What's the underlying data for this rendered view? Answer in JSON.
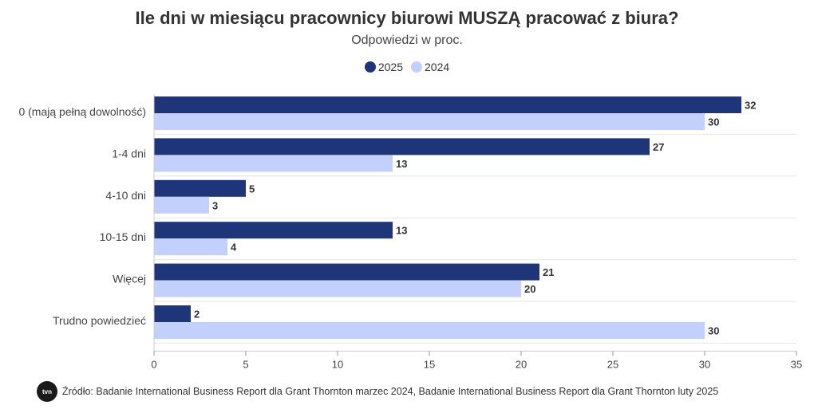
{
  "chart_data": {
    "type": "bar",
    "orientation": "horizontal",
    "title": "Ile dni w miesiącu pracownicy biurowi MUSZĄ pracować z biura?",
    "subtitle": "Odpowiedzi w proc.",
    "categories": [
      "0 (mają pełną dowolność)",
      "1-4 dni",
      "4-10 dni",
      "10-15 dni",
      "Więcej",
      "Trudno powiedzieć"
    ],
    "series": [
      {
        "name": "2025",
        "color": "#1f3579",
        "values": [
          32,
          27,
          5,
          13,
          21,
          2
        ]
      },
      {
        "name": "2024",
        "color": "#c3d0fb",
        "values": [
          30,
          13,
          3,
          4,
          20,
          30
        ]
      }
    ],
    "xlim": [
      0,
      35
    ],
    "xticks": [
      "0",
      "5",
      "10",
      "15",
      "20",
      "25",
      "30",
      "35"
    ],
    "xlabel": "",
    "ylabel": "",
    "legend_position": "top-center"
  },
  "source_text": "Źródło: Badanie International Business Report dla Grant Thornton marzec 2024, Badanie International Business Report dla Grant Thornton luty 2025",
  "logo_text": "tvn"
}
